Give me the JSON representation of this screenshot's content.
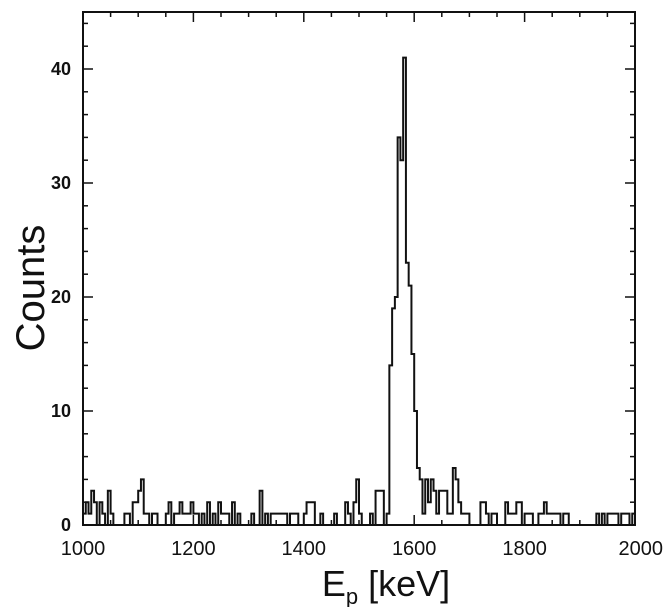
{
  "chart_data": {
    "type": "histogram",
    "xlabel_main": "E",
    "xlabel_sub": "p",
    "xlabel_unit": " [keV]",
    "ylabel": "Counts",
    "xlim": [
      1000,
      2000
    ],
    "ylim": [
      0,
      45
    ],
    "bin_width": 5,
    "x_ticks": [
      1000,
      1200,
      1400,
      1600,
      1800,
      2000
    ],
    "y_ticks": [
      0,
      10,
      20,
      30,
      40
    ],
    "grid": false,
    "series": [
      {
        "bin_start": 1000,
        "values": [
          1,
          2,
          1,
          3,
          2,
          0,
          2,
          1,
          0,
          3,
          1,
          0,
          0,
          0,
          0,
          1,
          1,
          0,
          2,
          2,
          3,
          4,
          1,
          1,
          0,
          1,
          1,
          0,
          0,
          0,
          1,
          2,
          0,
          1,
          1,
          2,
          1,
          1,
          1,
          2,
          1,
          1,
          0,
          1,
          0,
          2,
          0,
          1,
          0,
          2,
          1,
          1,
          1,
          0,
          2,
          0,
          1,
          0,
          0,
          0,
          0,
          1,
          0,
          0,
          3,
          0,
          1,
          0,
          1,
          1,
          1,
          1,
          1,
          1,
          0,
          1,
          1,
          1,
          0,
          0,
          1,
          2,
          2,
          2,
          0,
          0,
          1,
          0,
          0,
          0,
          0,
          1,
          0,
          0,
          0,
          2,
          1,
          0,
          2,
          4,
          1,
          0,
          0,
          0,
          1,
          0,
          3,
          3,
          3,
          0,
          1,
          14,
          19,
          20,
          34,
          32,
          41,
          23,
          21,
          15,
          10,
          5,
          4,
          1,
          4,
          2,
          4,
          3,
          1,
          3,
          3,
          3,
          1,
          1,
          5,
          4,
          2,
          1,
          1,
          1,
          0,
          0,
          0,
          0,
          2,
          2,
          1,
          0,
          1,
          1,
          0,
          0,
          0,
          2,
          1,
          1,
          1,
          2,
          2,
          0,
          1,
          1,
          1,
          0,
          0,
          1,
          1,
          2,
          1,
          1,
          1,
          1,
          1,
          0,
          1,
          1,
          0,
          0,
          0,
          0,
          0,
          0,
          0,
          0,
          0,
          0,
          1,
          0,
          1,
          0,
          1,
          1,
          1,
          1,
          0,
          1,
          1,
          1,
          0,
          1
        ]
      }
    ]
  }
}
